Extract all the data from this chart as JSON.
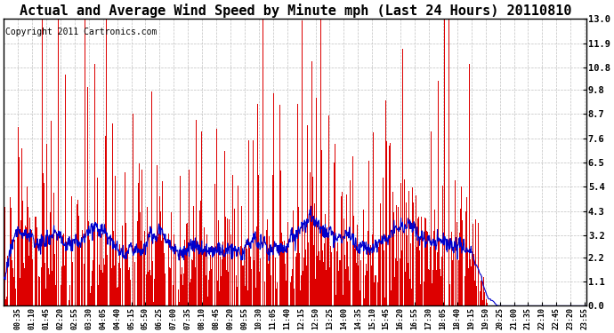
{
  "title": "Actual and Average Wind Speed by Minute mph (Last 24 Hours) 20110810",
  "copyright": "Copyright 2011 Cartronics.com",
  "yticks": [
    0.0,
    1.1,
    2.2,
    3.2,
    4.3,
    5.4,
    6.5,
    7.6,
    8.7,
    9.8,
    10.8,
    11.9,
    13.0
  ],
  "ylim": [
    0.0,
    13.0
  ],
  "bar_color": "#dd0000",
  "line_color": "#0000cc",
  "background_color": "#ffffff",
  "grid_color": "#c0c0c0",
  "title_fontsize": 11,
  "copyright_fontsize": 7,
  "xtick_labels": [
    "00:35",
    "01:10",
    "01:45",
    "02:20",
    "02:55",
    "03:30",
    "04:05",
    "04:40",
    "05:15",
    "05:50",
    "06:25",
    "07:00",
    "07:35",
    "08:10",
    "08:45",
    "09:20",
    "09:55",
    "10:30",
    "11:05",
    "11:40",
    "12:15",
    "12:50",
    "13:25",
    "14:00",
    "14:35",
    "15:10",
    "15:45",
    "16:20",
    "16:55",
    "17:30",
    "18:05",
    "18:40",
    "19:15",
    "19:50",
    "20:25",
    "21:00",
    "21:35",
    "22:10",
    "22:45",
    "23:20",
    "23:55"
  ]
}
